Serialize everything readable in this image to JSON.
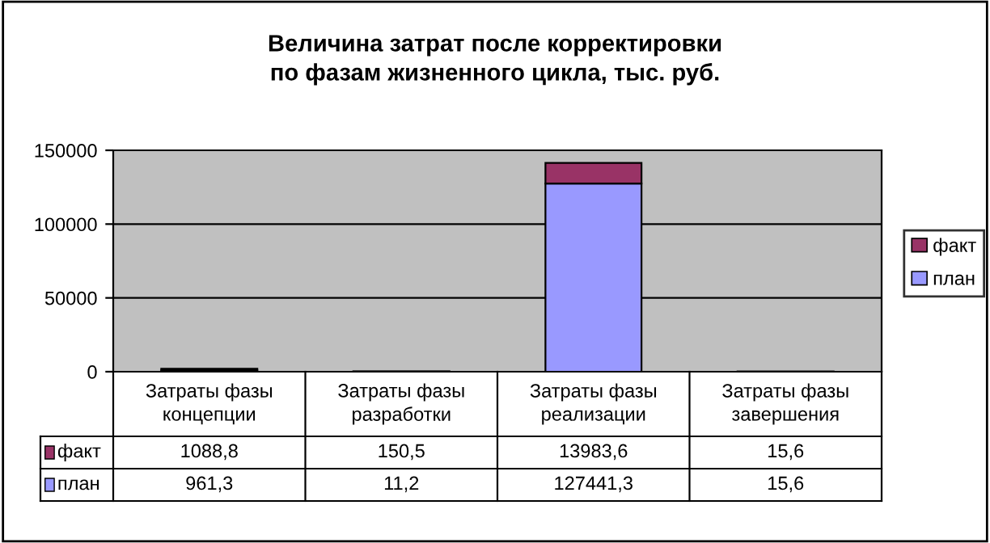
{
  "chart_data": {
    "type": "bar",
    "title": "Величина затрат после корректировки по фазам жизненного цикла, тыс. руб.",
    "categories": [
      "Затраты фазы концепции",
      "Затраты фазы разработки",
      "Затраты фазы реализации",
      "Затраты фазы завершения"
    ],
    "stacked": true,
    "series": [
      {
        "name": "план",
        "color": "#9999ff",
        "values": [
          961.3,
          11.2,
          127441.3,
          15.6
        ],
        "value_labels": [
          "961,3",
          "11,2",
          "127441,3",
          "15,6"
        ]
      },
      {
        "name": "факт",
        "color": "#993366",
        "values": [
          1088.8,
          150.5,
          13983.6,
          15.6
        ],
        "value_labels": [
          "1088,8",
          "150,5",
          "13983,6",
          "15,6"
        ]
      }
    ],
    "ylim": [
      0,
      150000
    ],
    "yticks": [
      0,
      50000,
      100000,
      150000
    ],
    "grid": "y",
    "legend": "right"
  }
}
